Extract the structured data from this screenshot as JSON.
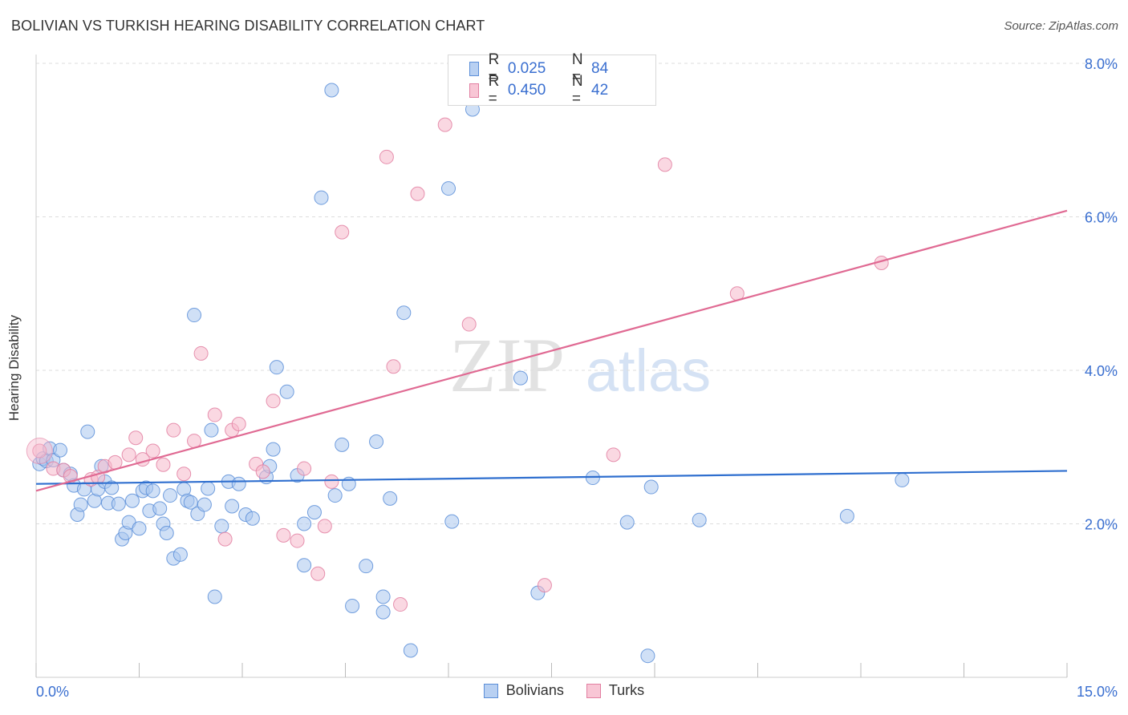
{
  "title": "BOLIVIAN VS TURKISH HEARING DISABILITY CORRELATION CHART",
  "source": "Source: ZipAtlas.com",
  "watermark": {
    "zip": "ZIP",
    "atlas": "atlas"
  },
  "legend_top": [
    {
      "r_label": "R =",
      "r_value": "0.025",
      "n_label": "N =",
      "n_value": "84"
    },
    {
      "r_label": "R =",
      "r_value": "0.450",
      "n_label": "N =",
      "n_value": "42"
    }
  ],
  "legend_bottom": [
    "Bolivians",
    "Turks"
  ],
  "colors": {
    "blue_fill": "#a9c6ef",
    "blue_stroke": "#5b8ed8",
    "blue_line": "#2f6fcf",
    "pink_fill": "#f6b8cb",
    "pink_stroke": "#e27fa1",
    "pink_line": "#e06a93",
    "tick_text": "#3a6fd0",
    "grid": "#dddddd"
  },
  "chart_data": {
    "type": "scatter",
    "title": "BOLIVIAN VS TURKISH HEARING DISABILITY CORRELATION CHART",
    "xlabel": "",
    "ylabel": "Hearing Disability",
    "xlim": [
      0,
      15
    ],
    "ylim": [
      0,
      8.3
    ],
    "x_tick_labels": [
      "0.0%",
      "15.0%"
    ],
    "y_ticks": [
      2,
      4,
      6,
      8
    ],
    "y_tick_labels": [
      "2.0%",
      "4.0%",
      "6.0%",
      "8.0%"
    ],
    "grid": true,
    "legend_position": "top-center",
    "series": [
      {
        "name": "Bolivians",
        "r": 0.025,
        "n": 84,
        "trend": {
          "x": [
            0,
            15
          ],
          "y": [
            2.52,
            2.69
          ]
        },
        "points": [
          [
            0.05,
            2.78
          ],
          [
            0.1,
            2.85
          ],
          [
            0.15,
            2.82
          ],
          [
            0.2,
            2.98
          ],
          [
            0.25,
            2.83
          ],
          [
            0.35,
            2.96
          ],
          [
            0.4,
            2.7
          ],
          [
            0.5,
            2.65
          ],
          [
            0.55,
            2.5
          ],
          [
            0.6,
            2.12
          ],
          [
            0.65,
            2.25
          ],
          [
            0.7,
            2.45
          ],
          [
            0.75,
            3.2
          ],
          [
            0.85,
            2.3
          ],
          [
            0.9,
            2.45
          ],
          [
            0.95,
            2.75
          ],
          [
            1.0,
            2.55
          ],
          [
            1.05,
            2.27
          ],
          [
            1.1,
            2.47
          ],
          [
            1.2,
            2.26
          ],
          [
            1.25,
            1.8
          ],
          [
            1.3,
            1.88
          ],
          [
            1.35,
            2.02
          ],
          [
            1.4,
            2.3
          ],
          [
            1.5,
            1.94
          ],
          [
            1.55,
            2.43
          ],
          [
            1.6,
            2.47
          ],
          [
            1.65,
            2.17
          ],
          [
            1.7,
            2.43
          ],
          [
            1.8,
            2.2
          ],
          [
            1.85,
            2.0
          ],
          [
            1.9,
            1.88
          ],
          [
            1.95,
            2.37
          ],
          [
            2.0,
            1.55
          ],
          [
            2.1,
            1.6
          ],
          [
            2.15,
            2.45
          ],
          [
            2.2,
            2.3
          ],
          [
            2.25,
            2.28
          ],
          [
            2.3,
            4.72
          ],
          [
            2.35,
            2.13
          ],
          [
            2.45,
            2.25
          ],
          [
            2.5,
            2.46
          ],
          [
            2.55,
            3.22
          ],
          [
            2.6,
            1.05
          ],
          [
            2.7,
            1.97
          ],
          [
            2.8,
            2.55
          ],
          [
            2.85,
            2.23
          ],
          [
            2.95,
            2.52
          ],
          [
            3.05,
            2.12
          ],
          [
            3.15,
            2.07
          ],
          [
            3.35,
            2.61
          ],
          [
            3.4,
            2.75
          ],
          [
            3.45,
            2.97
          ],
          [
            3.5,
            4.04
          ],
          [
            3.65,
            3.72
          ],
          [
            3.8,
            2.63
          ],
          [
            3.9,
            1.46
          ],
          [
            3.9,
            2.0
          ],
          [
            4.05,
            2.15
          ],
          [
            4.15,
            6.25
          ],
          [
            4.3,
            7.65
          ],
          [
            4.35,
            2.37
          ],
          [
            4.45,
            3.03
          ],
          [
            4.55,
            2.52
          ],
          [
            4.6,
            0.93
          ],
          [
            4.8,
            1.45
          ],
          [
            4.95,
            3.07
          ],
          [
            5.05,
            0.85
          ],
          [
            5.05,
            1.05
          ],
          [
            5.15,
            2.33
          ],
          [
            5.35,
            4.75
          ],
          [
            5.45,
            0.35
          ],
          [
            6.0,
            6.37
          ],
          [
            6.05,
            2.03
          ],
          [
            6.35,
            7.4
          ],
          [
            7.05,
            3.9
          ],
          [
            7.3,
            1.1
          ],
          [
            8.1,
            2.6
          ],
          [
            8.6,
            2.02
          ],
          [
            8.9,
            0.28
          ],
          [
            8.95,
            2.48
          ],
          [
            9.65,
            2.05
          ],
          [
            11.8,
            2.1
          ],
          [
            12.6,
            2.57
          ]
        ]
      },
      {
        "name": "Turks",
        "r": 0.45,
        "n": 42,
        "trend": {
          "x": [
            0,
            15
          ],
          "y": [
            2.43,
            6.08
          ]
        },
        "points": [
          [
            0.05,
            2.95
          ],
          [
            0.25,
            2.72
          ],
          [
            0.4,
            2.7
          ],
          [
            0.5,
            2.62
          ],
          [
            0.8,
            2.58
          ],
          [
            0.9,
            2.61
          ],
          [
            1.0,
            2.75
          ],
          [
            1.15,
            2.8
          ],
          [
            1.35,
            2.9
          ],
          [
            1.45,
            3.12
          ],
          [
            1.55,
            2.84
          ],
          [
            1.7,
            2.95
          ],
          [
            1.85,
            2.77
          ],
          [
            2.0,
            3.22
          ],
          [
            2.15,
            2.65
          ],
          [
            2.3,
            3.08
          ],
          [
            2.4,
            4.22
          ],
          [
            2.6,
            3.42
          ],
          [
            2.75,
            1.8
          ],
          [
            2.85,
            3.22
          ],
          [
            2.95,
            3.3
          ],
          [
            3.2,
            2.78
          ],
          [
            3.3,
            2.68
          ],
          [
            3.45,
            3.6
          ],
          [
            3.6,
            1.85
          ],
          [
            3.8,
            1.78
          ],
          [
            3.9,
            2.72
          ],
          [
            4.1,
            1.35
          ],
          [
            4.2,
            1.97
          ],
          [
            4.3,
            2.55
          ],
          [
            4.45,
            5.8
          ],
          [
            5.1,
            6.78
          ],
          [
            5.2,
            4.05
          ],
          [
            5.3,
            0.95
          ],
          [
            5.55,
            6.3
          ],
          [
            5.95,
            7.2
          ],
          [
            6.3,
            4.6
          ],
          [
            7.4,
            1.2
          ],
          [
            8.4,
            2.9
          ],
          [
            9.15,
            6.68
          ],
          [
            10.2,
            5.0
          ],
          [
            12.3,
            5.4
          ]
        ]
      }
    ]
  }
}
